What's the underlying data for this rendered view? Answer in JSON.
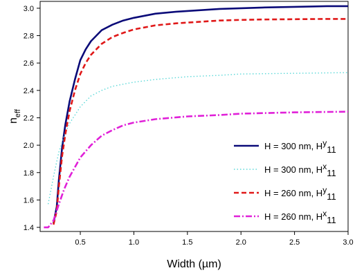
{
  "chart_data": {
    "type": "line",
    "xlabel": "Width (µm)",
    "ylabel_main": "n",
    "ylabel_sub": "eff",
    "xlim": [
      0.125,
      3.0
    ],
    "ylim": [
      1.37,
      3.05
    ],
    "xticks": [
      0.5,
      1.0,
      1.5,
      2.0,
      2.5,
      3.0
    ],
    "xtick_labels": [
      "0.5",
      "1.0",
      "1.5",
      "2.0",
      "2.5",
      "3.0"
    ],
    "yticks": [
      1.4,
      1.6,
      1.8,
      2.0,
      2.2,
      2.4,
      2.6,
      2.8,
      3.0
    ],
    "ytick_labels": [
      "1.4",
      "1.6",
      "1.8",
      "2.0",
      "2.2",
      "2.4",
      "2.6",
      "2.8",
      "3.0"
    ],
    "grid": false,
    "legend_position": "bottom-right",
    "series": [
      {
        "name_main": "H = 300 nm, H",
        "name_sup": "y",
        "name_sub": "11",
        "color": "#0a0a78",
        "style": "solid",
        "x": [
          0.25,
          0.28,
          0.3,
          0.33,
          0.36,
          0.4,
          0.45,
          0.5,
          0.55,
          0.6,
          0.7,
          0.8,
          0.9,
          1.0,
          1.2,
          1.4,
          1.6,
          1.8,
          2.0,
          2.2,
          2.5,
          2.8,
          3.0
        ],
        "y": [
          1.43,
          1.55,
          1.75,
          1.98,
          2.15,
          2.32,
          2.48,
          2.62,
          2.7,
          2.76,
          2.84,
          2.88,
          2.91,
          2.93,
          2.96,
          2.975,
          2.985,
          2.995,
          3.0,
          3.005,
          3.01,
          3.015,
          3.015
        ]
      },
      {
        "name_main": "H = 300 nm, H",
        "name_sup": "x",
        "name_sub": "11",
        "color": "#5ad8d8",
        "style": "dotted",
        "x": [
          0.2,
          0.25,
          0.28,
          0.3,
          0.35,
          0.4,
          0.5,
          0.6,
          0.7,
          0.8,
          1.0,
          1.2,
          1.5,
          1.8,
          2.0,
          2.5,
          3.0
        ],
        "y": [
          1.57,
          1.77,
          1.88,
          1.95,
          2.07,
          2.16,
          2.28,
          2.36,
          2.4,
          2.43,
          2.46,
          2.48,
          2.5,
          2.51,
          2.52,
          2.525,
          2.53
        ]
      },
      {
        "name_main": "H = 260 nm, H",
        "name_sup": "y",
        "name_sub": "11",
        "color": "#e01818",
        "style": "dashed",
        "x": [
          0.25,
          0.28,
          0.3,
          0.33,
          0.36,
          0.4,
          0.45,
          0.5,
          0.55,
          0.6,
          0.7,
          0.8,
          0.9,
          1.0,
          1.2,
          1.4,
          1.6,
          1.8,
          2.0,
          2.2,
          2.5,
          2.8,
          3.0
        ],
        "y": [
          1.42,
          1.52,
          1.7,
          1.92,
          2.08,
          2.25,
          2.4,
          2.52,
          2.6,
          2.66,
          2.74,
          2.79,
          2.82,
          2.845,
          2.875,
          2.89,
          2.9,
          2.91,
          2.915,
          2.918,
          2.92,
          2.922,
          2.922
        ]
      },
      {
        "name_main": "H = 260 nm, H",
        "name_sup": "x",
        "name_sub": "11",
        "color": "#e020d8",
        "style": "dashdot",
        "x": [
          0.16,
          0.2,
          0.25,
          0.3,
          0.35,
          0.4,
          0.5,
          0.6,
          0.7,
          0.8,
          0.9,
          1.0,
          1.2,
          1.5,
          1.8,
          2.0,
          2.5,
          3.0
        ],
        "y": [
          1.4,
          1.4,
          1.45,
          1.57,
          1.68,
          1.77,
          1.91,
          2.0,
          2.07,
          2.11,
          2.145,
          2.165,
          2.19,
          2.21,
          2.22,
          2.23,
          2.24,
          2.245
        ]
      }
    ]
  }
}
